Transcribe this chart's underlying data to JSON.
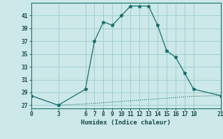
{
  "title": "",
  "xlabel": "Humidex (Indice chaleur)",
  "background_color": "#cce8e8",
  "line_color": "#1a6e6e",
  "grid_color": "#99cccc",
  "xlim": [
    0,
    21
  ],
  "ylim": [
    26.5,
    43.0
  ],
  "yticks": [
    27,
    29,
    31,
    33,
    35,
    37,
    39,
    41
  ],
  "xticks": [
    0,
    3,
    6,
    7,
    8,
    9,
    10,
    11,
    12,
    13,
    14,
    15,
    16,
    17,
    18,
    21
  ],
  "series1_x": [
    0,
    3,
    6,
    7,
    8,
    9,
    10,
    11,
    12,
    13,
    14,
    15,
    16,
    17,
    18,
    21
  ],
  "series1_y": [
    28.5,
    27.0,
    29.5,
    37.0,
    40.0,
    39.5,
    41.0,
    42.5,
    42.5,
    42.5,
    39.5,
    35.5,
    34.5,
    32.0,
    29.5,
    28.5
  ],
  "series2_x": [
    0,
    3,
    6,
    7,
    8,
    9,
    10,
    11,
    12,
    13,
    14,
    15,
    16,
    17,
    18,
    21
  ],
  "series2_y": [
    28.5,
    27.0,
    27.2,
    27.3,
    27.4,
    27.5,
    27.6,
    27.7,
    27.8,
    27.9,
    28.0,
    28.1,
    28.2,
    28.3,
    28.4,
    28.5
  ]
}
